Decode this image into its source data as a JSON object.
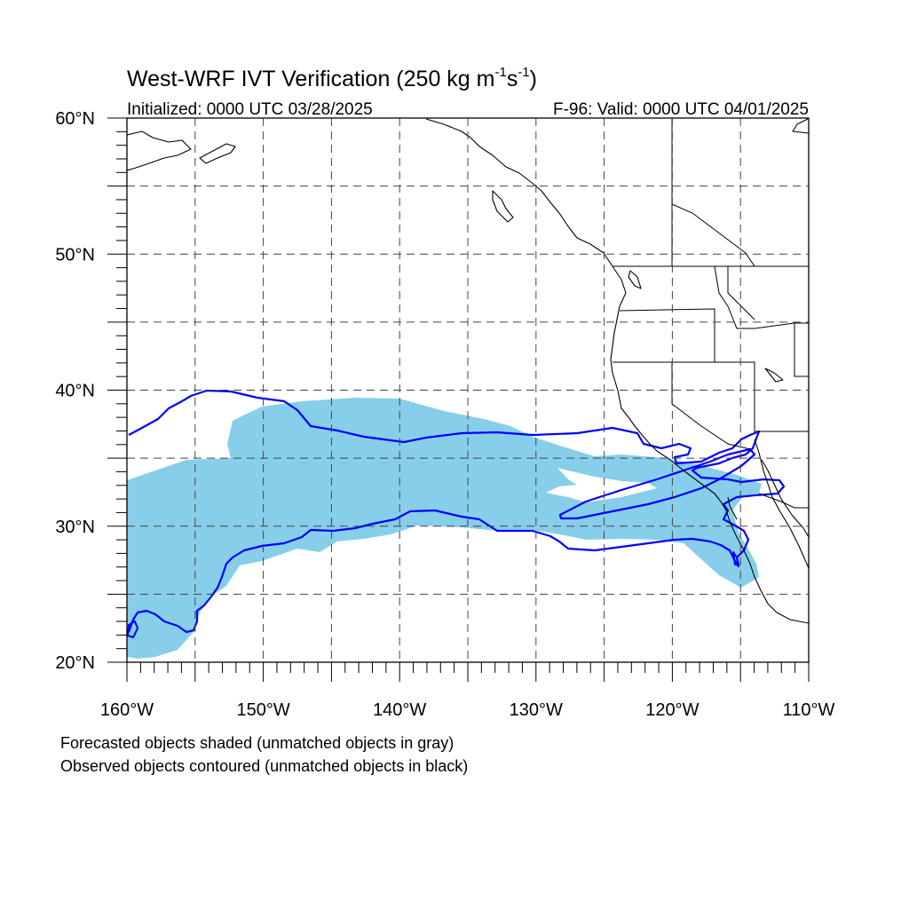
{
  "title": {
    "main": "West-WRF IVT Verification (250 kg m",
    "sup1": "-1",
    "mid": "s",
    "sup2": "-1",
    "close": ")"
  },
  "subtitle_left": "Initialized: 0000 UTC 03/28/2025",
  "subtitle_right": "F-96: Valid: 0000 UTC 04/01/2025",
  "axes": {
    "lon_labels": [
      "160°W",
      "150°W",
      "140°W",
      "130°W",
      "120°W",
      "110°W"
    ],
    "lat_labels": [
      "60°N",
      "50°N",
      "40°N",
      "30°N",
      "20°N"
    ],
    "lon_range": [
      -160,
      -110
    ],
    "lat_range": [
      20,
      60
    ],
    "grid_lon_step": 5,
    "grid_lat_step": 5
  },
  "colors": {
    "forecast_fill": "#87ceeb",
    "observed_contour": "#0000ff",
    "coast": "#000000"
  },
  "notes": [
    "Forecasted objects shaded (unmatched objects in gray)",
    "Observed objects contoured (unmatched objects in black)"
  ]
}
